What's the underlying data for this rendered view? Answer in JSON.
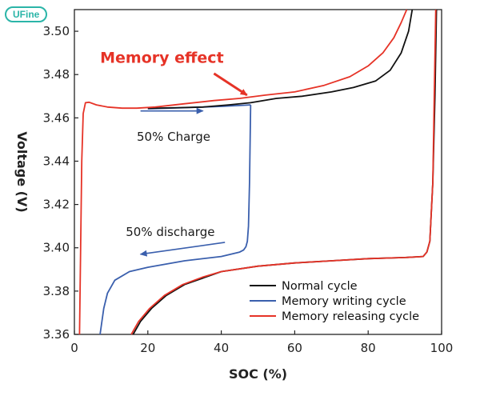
{
  "logo": {
    "text": "UFine"
  },
  "chart_data": {
    "type": "line",
    "title": "",
    "xlabel": "SOC (%)",
    "ylabel": "Voltage (V)",
    "xlim": [
      0,
      100
    ],
    "ylim": [
      3.36,
      3.51
    ],
    "x_ticks": [
      0,
      20,
      40,
      60,
      80,
      100
    ],
    "x_tick_labels": [
      "0",
      "20",
      "40",
      "60",
      "80",
      "100"
    ],
    "y_ticks": [
      3.36,
      3.38,
      3.4,
      3.42,
      3.44,
      3.46,
      3.48,
      3.5
    ],
    "y_tick_labels": [
      "3.36",
      "3.38",
      "3.40",
      "3.42",
      "3.44",
      "3.46",
      "3.48",
      "3.50"
    ],
    "grid": false,
    "legend_position": "bottom-right",
    "colors": {
      "normal": "#111111",
      "writing": "#3a5fad",
      "releasing": "#e63327",
      "annotation_red": "#e63327",
      "annotation_blue": "#3a5fad"
    },
    "series": [
      {
        "name": "Normal cycle",
        "key": "normal",
        "paths": [
          {
            "x": [
              92,
              91,
              89,
              86,
              82,
              76,
              70,
              62,
              55,
              48,
              42,
              35,
              28,
              20
            ],
            "y": [
              3.51,
              3.5,
              3.49,
              3.482,
              3.477,
              3.474,
              3.472,
              3.47,
              3.469,
              3.467,
              3.466,
              3.465,
              3.4647,
              3.4644
            ]
          },
          {
            "x": [
              16,
              18,
              21,
              25,
              30,
              35,
              40,
              50,
              60,
              70,
              80,
              90,
              95,
              96,
              96.8,
              97.6,
              98.2,
              98.6
            ],
            "y": [
              3.36,
              3.366,
              3.372,
              3.378,
              3.383,
              3.386,
              3.389,
              3.3915,
              3.393,
              3.394,
              3.395,
              3.3955,
              3.396,
              3.398,
              3.403,
              3.43,
              3.47,
              3.51
            ]
          }
        ]
      },
      {
        "name": "Memory writing cycle",
        "key": "writing",
        "paths": [
          {
            "x": [
              48,
              47.7,
              47.4,
              47.1,
              46.7,
              46.1,
              45,
              40,
              30,
              20,
              15,
              11,
              9,
              8,
              7.4,
              7
            ],
            "y": [
              3.466,
              3.43,
              3.41,
              3.403,
              3.4005,
              3.399,
              3.398,
              3.396,
              3.394,
              3.391,
              3.389,
              3.385,
              3.379,
              3.372,
              3.365,
              3.36
            ]
          },
          {
            "x": [
              20,
              30,
              40,
              48
            ],
            "y": [
              3.4642,
              3.4647,
              3.4653,
              3.466
            ]
          }
        ]
      },
      {
        "name": "Memory releasing cycle",
        "key": "releasing",
        "paths": [
          {
            "x": [
              1.4,
              1.7,
              2.0,
              2.4,
              3.0,
              4,
              6,
              9,
              13,
              17,
              22,
              30,
              38,
              45,
              52,
              60,
              68,
              75,
              80,
              84,
              87,
              89,
              90.5
            ],
            "y": [
              3.36,
              3.4,
              3.44,
              3.462,
              3.467,
              3.4672,
              3.466,
              3.465,
              3.4645,
              3.4645,
              3.465,
              3.4665,
              3.468,
              3.469,
              3.4705,
              3.472,
              3.475,
              3.479,
              3.484,
              3.49,
              3.497,
              3.504,
              3.51
            ]
          },
          {
            "x": [
              15.5,
              17.5,
              20.5,
              24.5,
              29.5,
              35,
              40,
              50,
              60,
              70,
              80,
              90,
              95,
              96,
              96.8,
              97.6,
              98,
              98.4
            ],
            "y": [
              3.36,
              3.366,
              3.372,
              3.378,
              3.383,
              3.3865,
              3.389,
              3.3915,
              3.393,
              3.394,
              3.395,
              3.3955,
              3.396,
              3.398,
              3.403,
              3.43,
              3.47,
              3.51
            ]
          }
        ]
      }
    ],
    "annotations": [
      {
        "key": "memory_effect",
        "text": "Memory effect",
        "color": "red",
        "x": 7,
        "y": 3.4855,
        "arrow_from": [
          38,
          3.4805
        ],
        "arrow_to": [
          47,
          3.4705
        ]
      },
      {
        "key": "charge",
        "text": "50% Charge",
        "color": "dark",
        "x": 17,
        "y": 3.4495,
        "arrow_from": [
          18,
          3.4632
        ],
        "arrow_to": [
          35,
          3.4632
        ]
      },
      {
        "key": "discharge",
        "text": "50% discharge",
        "color": "dark",
        "x": 14,
        "y": 3.4055,
        "arrow_from": [
          41,
          3.4025
        ],
        "arrow_to": [
          18,
          3.397
        ]
      }
    ]
  }
}
